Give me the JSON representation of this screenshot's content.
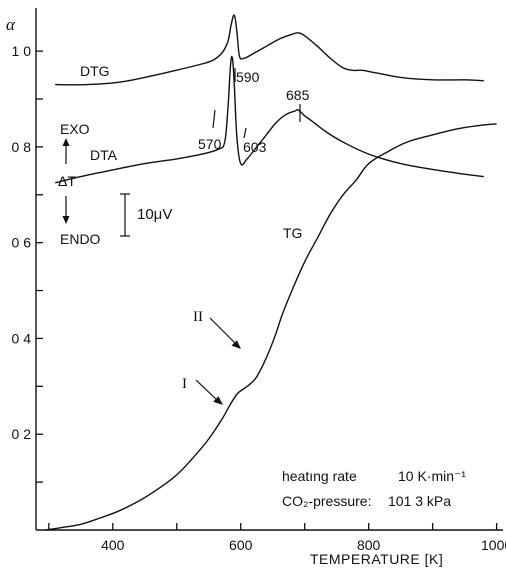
{
  "chart_data": {
    "type": "line",
    "ylabel": "α",
    "xlabel": "TEMPERATURE [K]",
    "xlim": [
      280,
      1010
    ],
    "ylim": [
      0,
      1.09
    ],
    "xticks": [
      400,
      600,
      800,
      1000
    ],
    "xtick_labels": [
      "400",
      "600",
      "800",
      "1000"
    ],
    "yticks": [
      0.2,
      0.4,
      0.6,
      0.8,
      1.0
    ],
    "ytick_labels": [
      "0 2",
      "0 4",
      "0 6",
      "0 8",
      "1 0"
    ],
    "grid": false,
    "series": [
      {
        "name": "TG",
        "x": [
          295,
          320,
          350,
          380,
          410,
          440,
          470,
          500,
          525,
          550,
          570,
          585,
          595,
          605,
          615,
          625,
          635,
          645,
          655,
          665,
          680,
          700,
          720,
          740,
          760,
          780,
          800,
          830,
          860,
          900,
          940,
          980,
          1000
        ],
        "y": [
          0.0,
          0.005,
          0.012,
          0.025,
          0.04,
          0.06,
          0.085,
          0.115,
          0.15,
          0.19,
          0.23,
          0.265,
          0.285,
          0.295,
          0.305,
          0.32,
          0.345,
          0.375,
          0.41,
          0.45,
          0.5,
          0.56,
          0.61,
          0.66,
          0.7,
          0.73,
          0.765,
          0.79,
          0.81,
          0.825,
          0.838,
          0.846,
          0.848
        ]
      },
      {
        "name": "DTA",
        "x": [
          310,
          350,
          400,
          450,
          500,
          540,
          565,
          575,
          580,
          584,
          587,
          590,
          594,
          600,
          610,
          625,
          640,
          655,
          670,
          685,
          690,
          700,
          715,
          735,
          760,
          800,
          850,
          900,
          950,
          980
        ],
        "y": [
          0.725,
          0.738,
          0.752,
          0.765,
          0.775,
          0.785,
          0.795,
          0.81,
          0.88,
          0.97,
          0.985,
          0.93,
          0.82,
          0.765,
          0.775,
          0.8,
          0.825,
          0.85,
          0.867,
          0.875,
          0.877,
          0.865,
          0.85,
          0.83,
          0.81,
          0.785,
          0.765,
          0.753,
          0.743,
          0.738
        ]
      },
      {
        "name": "DTG",
        "x": [
          310,
          360,
          410,
          450,
          490,
          530,
          555,
          570,
          580,
          585,
          590,
          594,
          598,
          605,
          620,
          640,
          660,
          680,
          690,
          700,
          720,
          740,
          760,
          775,
          790,
          810,
          850,
          900,
          950,
          980
        ],
        "y": [
          0.93,
          0.93,
          0.935,
          0.945,
          0.957,
          0.97,
          0.98,
          0.995,
          1.02,
          1.055,
          1.075,
          1.04,
          0.99,
          0.985,
          0.995,
          1.01,
          1.025,
          1.035,
          1.038,
          1.032,
          1.01,
          0.985,
          0.965,
          0.96,
          0.96,
          0.955,
          0.945,
          0.94,
          0.94,
          0.938
        ]
      }
    ],
    "annotations": {
      "dtg_label": "DTG",
      "dta_label": "DTA",
      "tg_label": "TG",
      "peak_590": "590",
      "point_570": "570",
      "point_603": "603",
      "peak_685": "685",
      "stage_1": "I",
      "stage_2": "II",
      "exo": "EXO",
      "endo": "ENDO",
      "delta_t": "ΔT",
      "scale_bar": "10μV",
      "condition_1_label": "heatıng rate",
      "condition_1_value": "10 K·min⁻¹",
      "condition_2_label": "CO₂-pressure:",
      "condition_2_value": "101 3 kPa"
    }
  }
}
